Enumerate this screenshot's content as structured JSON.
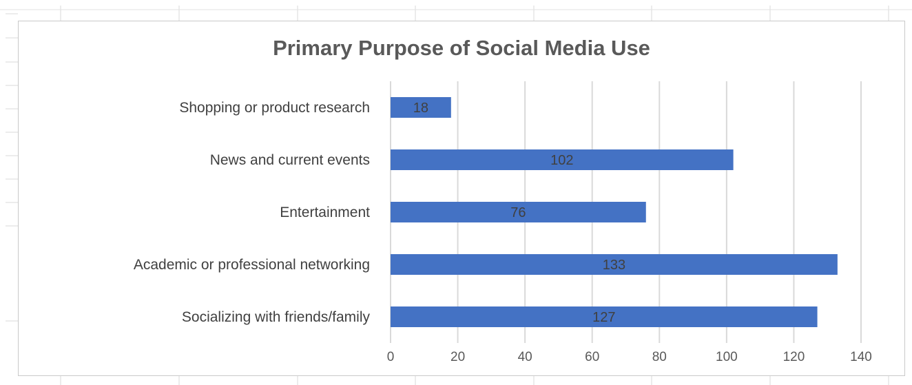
{
  "chart_data": {
    "type": "bar",
    "orientation": "horizontal",
    "title": "Primary Purpose of Social Media Use",
    "xlabel": "",
    "ylabel": "",
    "categories": [
      "Shopping or product research",
      "News and current events",
      "Entertainment",
      "Academic or professional networking",
      "Socializing with friends/family"
    ],
    "values": [
      18,
      102,
      76,
      133,
      127
    ],
    "xlim": [
      0,
      140
    ],
    "x_ticks": [
      "0",
      "20",
      "40",
      "60",
      "80",
      "100",
      "120",
      "140"
    ],
    "grid": "vertical gridlines",
    "data_labels": true,
    "bar_color": "#4472c4",
    "legend": "none"
  }
}
